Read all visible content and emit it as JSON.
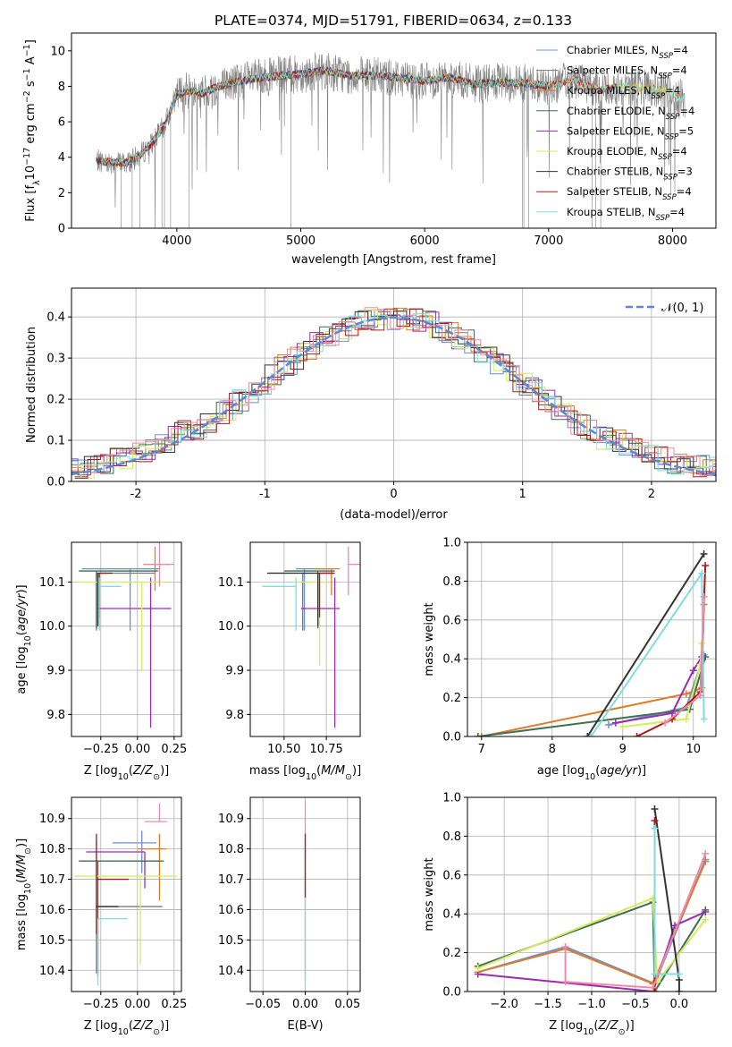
{
  "chart_data": [
    {
      "id": "spectrum",
      "type": "line",
      "title": "PLATE=0374, MJD=51791, FIBERID=0634, z=0.133",
      "xlabel": "wavelength [Angstrom, rest frame]",
      "ylabel": "Flux [f_λ 10^-17 erg cm^-2 s^-1 A^-1]",
      "xlim": [
        3150,
        8350
      ],
      "ylim": [
        0,
        11
      ],
      "xticks": [
        4000,
        5000,
        6000,
        7000,
        8000
      ],
      "yticks": [
        0,
        2,
        4,
        6,
        8,
        10
      ],
      "legend_position": "right",
      "series": [
        {
          "name": "Chabrier MILES, N_SSP=4",
          "color": "#6b8fd9"
        },
        {
          "name": "Salpeter MILES, N_SSP=4",
          "color": "#7a7a7a"
        },
        {
          "name": "Kroupa MILES, N_SSP=4",
          "color": "#e07b2a"
        },
        {
          "name": "Chabrier ELODIE, N_SSP=4",
          "color": "#3f6e50"
        },
        {
          "name": "Salpeter ELODIE, N_SSP=5",
          "color": "#9a2bb0"
        },
        {
          "name": "Kroupa ELODIE, N_SSP=4",
          "color": "#d4ec5c"
        },
        {
          "name": "Chabrier STELIB, N_SSP=3",
          "color": "#333333"
        },
        {
          "name": "Salpeter STELIB, N_SSP=4",
          "color": "#b01818"
        },
        {
          "name": "Kroupa STELIB, N_SSP=4",
          "color": "#7fdde0"
        }
      ],
      "data_color": "#808080",
      "model_continuum": {
        "x": [
          3350,
          3500,
          3600,
          3700,
          3800,
          3900,
          4000,
          4100,
          4200,
          4300,
          4500,
          4700,
          5000,
          5200,
          5400,
          5600,
          5800,
          6000,
          6200,
          6400,
          6600,
          6800,
          7000,
          7200,
          7400,
          7600,
          7800,
          8000,
          8100
        ],
        "y": [
          3.8,
          3.7,
          3.7,
          4.1,
          4.8,
          5.8,
          7.5,
          7.8,
          7.6,
          7.9,
          8.3,
          8.5,
          8.7,
          8.9,
          8.6,
          8.6,
          8.5,
          8.3,
          8.5,
          8.1,
          8.2,
          8.2,
          8.0,
          8.4,
          7.8,
          8.0,
          7.9,
          7.6,
          7.2
        ]
      }
    },
    {
      "id": "residuals",
      "type": "bar",
      "xlabel": "(data-model)/error",
      "ylabel": "Normed distribution",
      "xlim": [
        -2.5,
        2.5
      ],
      "ylim": [
        0,
        0.47
      ],
      "xticks": [
        -2,
        -1,
        0,
        1,
        2
      ],
      "yticks": [
        0.0,
        0.1,
        0.2,
        0.3,
        0.4
      ],
      "legend": "𝒩(0, 1)",
      "legend_position": "top-right",
      "gaussian_color": "#5b87d6"
    },
    {
      "id": "age_vs_Z",
      "type": "scatter",
      "xlabel": "Z [log10(Z/Z⊙)]",
      "ylabel": "age  [log10(age/yr)]",
      "xlim": [
        -0.45,
        0.3
      ],
      "ylim": [
        9.75,
        10.19
      ],
      "xticks": [
        -0.25,
        0.0,
        0.25
      ],
      "xtick_labels": [
        "−0.25",
        "0.00",
        "0.25"
      ],
      "yticks": [
        9.8,
        9.9,
        10.0,
        10.1
      ],
      "points": [
        {
          "x": -0.05,
          "y": 10.13,
          "xerr": [
            0.33,
            0.2
          ],
          "yerr": [
            0.14,
            0.0
          ],
          "color": "#6b8fd9"
        },
        {
          "x": -0.28,
          "y": 10.12,
          "xerr": [
            0.0,
            0.4
          ],
          "yerr": [
            0.13,
            0.0
          ],
          "color": "#7a7a7a"
        },
        {
          "x": 0.12,
          "y": 10.14,
          "xerr": [
            0.08,
            0.1
          ],
          "yerr": [
            0.06,
            0.04
          ],
          "color": "#e07b2a"
        },
        {
          "x": -0.28,
          "y": 10.125,
          "xerr": [
            0.12,
            0.42
          ],
          "yerr": [
            0.13,
            0.0
          ],
          "color": "#3f6e50"
        },
        {
          "x": 0.09,
          "y": 10.04,
          "xerr": [
            0.36,
            0.14
          ],
          "yerr": [
            0.27,
            0.07
          ],
          "color": "#9a2bb0"
        },
        {
          "x": 0.03,
          "y": 10.1,
          "xerr": [
            0.45,
            0.17
          ],
          "yerr": [
            0.2,
            0.0
          ],
          "color": "#d4ec5c"
        },
        {
          "x": -0.27,
          "y": 10.12,
          "xerr": [
            0.0,
            0.1
          ],
          "yerr": [
            0.12,
            0.0
          ],
          "color": "#333333"
        },
        {
          "x": -0.26,
          "y": 10.12,
          "xerr": [
            0.0,
            0.05
          ],
          "yerr": [
            0.1,
            0.0
          ],
          "color": "#b01818"
        },
        {
          "x": -0.26,
          "y": 10.09,
          "xerr": [
            0.0,
            0.15
          ],
          "yerr": [
            0.1,
            0.02
          ],
          "color": "#7fdde0"
        },
        {
          "x": 0.15,
          "y": 10.14,
          "xerr": [
            0.1,
            0.1
          ],
          "yerr": [
            0.05,
            0.05
          ],
          "color": "#f08aa8"
        }
      ]
    },
    {
      "id": "age_vs_mass",
      "type": "scatter",
      "xlabel": "mass [log10(M/M⊙)]",
      "xlim": [
        10.3,
        10.95
      ],
      "ylim": [
        9.75,
        10.19
      ],
      "xticks": [
        10.5,
        10.75
      ],
      "xtick_labels": [
        "10.50",
        "10.75"
      ],
      "yticks": [
        9.8,
        9.9,
        10.0,
        10.1
      ],
      "points": [
        {
          "x": 10.62,
          "y": 10.13,
          "xerr": [
            0.05,
            0.15
          ],
          "yerr": [
            0.14,
            0.0
          ],
          "color": "#6b8fd9"
        },
        {
          "x": 10.61,
          "y": 10.12,
          "xerr": [
            0.2,
            0.18
          ],
          "yerr": [
            0.13,
            0.0
          ],
          "color": "#7a7a7a"
        },
        {
          "x": 10.78,
          "y": 10.13,
          "xerr": [
            0.1,
            0.05
          ],
          "yerr": [
            0.06,
            0.0
          ],
          "color": "#e07b2a"
        },
        {
          "x": 10.7,
          "y": 10.125,
          "xerr": [
            0.2,
            0.1
          ],
          "yerr": [
            0.13,
            0.0
          ],
          "color": "#3f6e50"
        },
        {
          "x": 10.8,
          "y": 10.04,
          "xerr": [
            0.2,
            0.03
          ],
          "yerr": [
            0.27,
            0.07
          ],
          "color": "#9a2bb0"
        },
        {
          "x": 10.71,
          "y": 10.1,
          "xerr": [
            0.15,
            0.05
          ],
          "yerr": [
            0.19,
            0.0
          ],
          "color": "#d4ec5c"
        },
        {
          "x": 10.7,
          "y": 10.12,
          "xerr": [
            0.3,
            0.1
          ],
          "yerr": [
            0.12,
            0.0
          ],
          "color": "#333333"
        },
        {
          "x": 10.71,
          "y": 10.12,
          "xerr": [
            0.0,
            0.08
          ],
          "yerr": [
            0.1,
            0.0
          ],
          "color": "#b01818"
        },
        {
          "x": 10.57,
          "y": 10.09,
          "xerr": [
            0.2,
            0.0
          ],
          "yerr": [
            0.1,
            0.02
          ],
          "color": "#7fdde0"
        },
        {
          "x": 10.88,
          "y": 10.14,
          "xerr": [
            0.0,
            0.08
          ],
          "yerr": [
            0.07,
            0.04
          ],
          "color": "#f08aa8"
        }
      ]
    },
    {
      "id": "mass_weight_vs_age",
      "type": "line",
      "xlabel": "age  [log10(age/yr)]",
      "ylabel": "mass weight",
      "xlim": [
        6.8,
        10.32
      ],
      "ylim": [
        0,
        1
      ],
      "xticks": [
        7,
        8,
        9,
        10
      ],
      "yticks": [
        0.0,
        0.2,
        0.4,
        0.6,
        0.8,
        1.0
      ],
      "series": [
        {
          "color": "#6b8fd9",
          "x": [
            8.8,
            9.9,
            10.15
          ],
          "y": [
            0.06,
            0.15,
            0.42
          ]
        },
        {
          "color": "#e07b2a",
          "x": [
            7.0,
            9.9,
            10.12,
            10.15
          ],
          "y": [
            0.0,
            0.22,
            0.25,
            0.68
          ]
        },
        {
          "color": "#3f6e50",
          "x": [
            6.95,
            9.95,
            10.17
          ],
          "y": [
            0.0,
            0.14,
            0.41
          ]
        },
        {
          "color": "#9a2bb0",
          "x": [
            8.9,
            9.7,
            10.0,
            10.12
          ],
          "y": [
            0.07,
            0.12,
            0.34,
            0.41
          ]
        },
        {
          "color": "#d4ec5c",
          "x": [
            9.0,
            9.9,
            10.1,
            10.12
          ],
          "y": [
            0.05,
            0.09,
            0.37,
            0.48
          ]
        },
        {
          "color": "#333333",
          "x": [
            8.5,
            10.15
          ],
          "y": [
            0.0,
            0.94
          ]
        },
        {
          "color": "#b01818",
          "x": [
            9.2,
            9.7,
            10.1,
            10.17
          ],
          "y": [
            0.0,
            0.09,
            0.23,
            0.88
          ]
        },
        {
          "color": "#7fdde0",
          "x": [
            8.55,
            10.12,
            10.15
          ],
          "y": [
            0.0,
            0.84,
            0.09
          ]
        },
        {
          "color": "#f08aa8",
          "x": [
            9.6,
            10.1,
            10.15
          ],
          "y": [
            0.07,
            0.21,
            0.72
          ]
        }
      ]
    },
    {
      "id": "mass_vs_Z",
      "type": "scatter",
      "xlabel": "Z [log10(Z/Z⊙)]",
      "ylabel": "mass [log10(M/M⊙)]",
      "xlim": [
        -0.45,
        0.3
      ],
      "ylim": [
        10.33,
        10.97
      ],
      "xticks": [
        -0.25,
        0.0,
        0.25
      ],
      "xtick_labels": [
        "−0.25",
        "0.00",
        "0.25"
      ],
      "yticks": [
        10.4,
        10.5,
        10.6,
        10.7,
        10.8,
        10.9
      ],
      "points": [
        {
          "x": 0.03,
          "y": 10.82,
          "xerr": [
            0.2,
            0.1
          ],
          "yerr": [
            0.1,
            0.04
          ],
          "color": "#6b8fd9"
        },
        {
          "x": -0.28,
          "y": 10.61,
          "xerr": [
            0.0,
            0.45
          ],
          "yerr": [
            0.22,
            0.22
          ],
          "color": "#7a7a7a"
        },
        {
          "x": 0.15,
          "y": 10.8,
          "xerr": [
            0.15,
            0.05
          ],
          "yerr": [
            0.17,
            0.05
          ],
          "color": "#e07b2a"
        },
        {
          "x": -0.27,
          "y": 10.76,
          "xerr": [
            0.13,
            0.45
          ],
          "yerr": [
            0.38,
            0.0
          ],
          "color": "#3f6e50"
        },
        {
          "x": 0.05,
          "y": 10.79,
          "xerr": [
            0.4,
            0.0
          ],
          "yerr": [
            0.12,
            0.0
          ],
          "color": "#9a2bb0"
        },
        {
          "x": 0.02,
          "y": 10.71,
          "xerr": [
            0.45,
            0.25
          ],
          "yerr": [
            0.29,
            0.0
          ],
          "color": "#d4ec5c"
        },
        {
          "x": -0.28,
          "y": 10.61,
          "xerr": [
            0.0,
            0.15
          ],
          "yerr": [
            0.0,
            0.0
          ],
          "color": "#333333"
        },
        {
          "x": -0.28,
          "y": 10.7,
          "xerr": [
            0.0,
            0.22
          ],
          "yerr": [
            0.18,
            0.15
          ],
          "color": "#b01818"
        },
        {
          "x": -0.27,
          "y": 10.57,
          "xerr": [
            0.0,
            0.2
          ],
          "yerr": [
            0.22,
            0.0
          ],
          "color": "#7fdde0"
        },
        {
          "x": 0.15,
          "y": 10.89,
          "xerr": [
            0.1,
            0.05
          ],
          "yerr": [
            0.0,
            0.06
          ],
          "color": "#f08aa8"
        }
      ]
    },
    {
      "id": "mass_vs_EBV",
      "type": "scatter",
      "xlabel": "E(B-V)",
      "xlim": [
        -0.065,
        0.065
      ],
      "ylim": [
        10.33,
        10.97
      ],
      "xticks": [
        -0.05,
        0.0,
        0.05
      ],
      "xtick_labels": [
        "−0.05",
        "0.00",
        "0.05"
      ],
      "yticks": [
        10.4,
        10.5,
        10.6,
        10.7,
        10.8,
        10.9
      ],
      "points": [
        {
          "x": 0.0,
          "y": 10.8,
          "yerr": [
            0.43,
            0.16
          ],
          "color": "#f08aa8"
        },
        {
          "x": 0.0,
          "y": 10.8,
          "yerr": [
            0.45,
            0.0
          ],
          "color": "#7fdde0"
        },
        {
          "x": 0.0,
          "y": 10.7,
          "yerr": [
            0.06,
            0.15
          ],
          "color": "#b01818"
        }
      ]
    },
    {
      "id": "mass_weight_vs_Z",
      "type": "line",
      "xlabel": "Z [log10(Z/Z⊙)]",
      "ylabel": "mass weight",
      "xlim": [
        -2.42,
        0.42
      ],
      "ylim": [
        0,
        1
      ],
      "xticks": [
        -2.0,
        -1.5,
        -1.0,
        -0.5,
        0.0
      ],
      "xtick_labels": [
        "−2.0",
        "−1.5",
        "−1.0",
        "−0.5",
        "0.0"
      ],
      "yticks": [
        0.0,
        0.2,
        0.4,
        0.6,
        0.8,
        1.0
      ],
      "series": [
        {
          "color": "#6b8fd9",
          "x": [
            -2.3,
            -1.3,
            -0.28,
            0.3
          ],
          "y": [
            0.1,
            0.23,
            0.04,
            0.68
          ]
        },
        {
          "color": "#e07b2a",
          "x": [
            -2.3,
            -1.3,
            -0.3,
            0.3
          ],
          "y": [
            0.1,
            0.22,
            0.04,
            0.67
          ]
        },
        {
          "color": "#3f6e50",
          "x": [
            -2.3,
            -0.3,
            -0.28,
            0.3
          ],
          "y": [
            0.13,
            0.46,
            0.0,
            0.42
          ]
        },
        {
          "color": "#9a2bb0",
          "x": [
            -2.3,
            -0.3,
            -0.05,
            0.3
          ],
          "y": [
            0.09,
            0.0,
            0.34,
            0.41
          ]
        },
        {
          "color": "#d4ec5c",
          "x": [
            -2.3,
            -0.3,
            -0.25,
            0.3
          ],
          "y": [
            0.12,
            0.48,
            0.05,
            0.37
          ]
        },
        {
          "color": "#333333",
          "x": [
            -0.28,
            0.0,
            0.0
          ],
          "y": [
            0.94,
            0.06,
            0.0
          ]
        },
        {
          "color": "#b01818",
          "x": [
            -0.28,
            -0.28
          ],
          "y": [
            0.88,
            0.0
          ]
        },
        {
          "color": "#7fdde0",
          "x": [
            -0.28,
            -0.28,
            0.0
          ],
          "y": [
            0.84,
            0.09,
            0.09
          ]
        },
        {
          "color": "#f08aa8",
          "x": [
            -1.3,
            -1.3,
            -0.3,
            0.3
          ],
          "y": [
            0.23,
            0.05,
            0.02,
            0.71
          ]
        }
      ]
    }
  ]
}
